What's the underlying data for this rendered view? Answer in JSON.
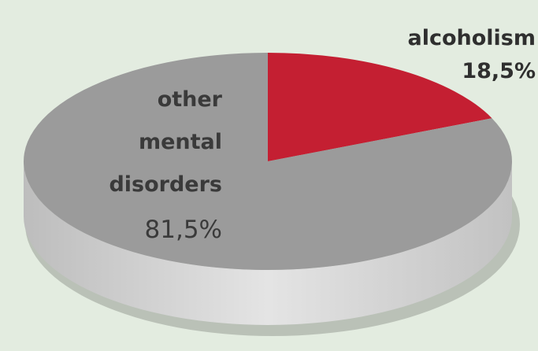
{
  "chart_data": {
    "type": "pie",
    "title": "",
    "slices": [
      {
        "label_lines": [
          "other",
          "mental",
          "disorders"
        ],
        "value_text": "81,5%",
        "value": 81.5,
        "color": "#9b9b9b"
      },
      {
        "label_lines": [
          "alcoholism"
        ],
        "value_text": "18,5%",
        "value": 18.5,
        "color": "#c41f32"
      }
    ],
    "side_color": "#cfcfcf",
    "background": "#e3ece0"
  }
}
